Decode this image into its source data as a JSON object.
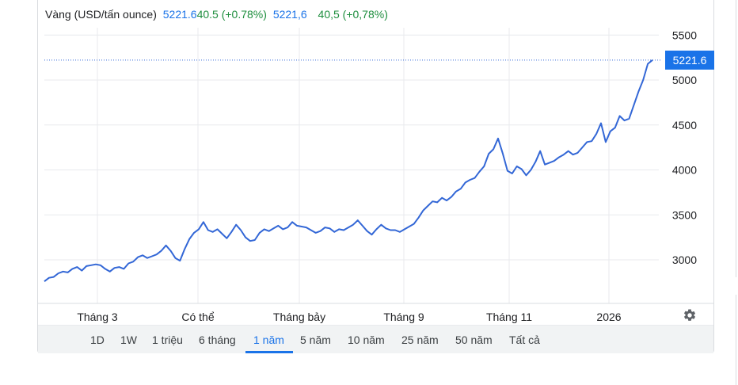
{
  "header": {
    "title": "Vàng (USD/tấn ounce)",
    "price": "5221.6",
    "change": "40.5 (+0.78%)",
    "price_alt": "5221,6",
    "change_alt": "40,5 (+0,78%)"
  },
  "current_label": "5221.6",
  "ranges": [
    "1D",
    "1W",
    "1 triệu",
    "6 tháng",
    "1 năm",
    "5 năm",
    "10 năm",
    "25 năm",
    "50 năm",
    "Tất cả"
  ],
  "active_range": "1 năm",
  "colors": {
    "line": "#3367d6",
    "accent": "#1a73e8",
    "positive": "#1e8e3e",
    "grid": "#e8eaed"
  },
  "icons": {
    "settings": "gear-icon"
  },
  "chart_data": {
    "type": "line",
    "x_tick_labels": [
      "Tháng 3",
      "Có thể",
      "Tháng bảy",
      "Tháng 9",
      "Tháng 11",
      "2026"
    ],
    "y_ticks": [
      3000,
      3500,
      4000,
      4500,
      5000,
      5500
    ],
    "ylim": [
      2600,
      5600
    ],
    "grid": true,
    "reference_line": 5221.6,
    "series": [
      {
        "values": [
          2760,
          2800,
          2810,
          2850,
          2870,
          2860,
          2900,
          2920,
          2880,
          2930,
          2940,
          2950,
          2940,
          2900,
          2870,
          2910,
          2920,
          2900,
          2960,
          2980,
          3030,
          3050,
          3020,
          3040,
          3060,
          3100,
          3160,
          3100,
          3020,
          2990,
          3120,
          3230,
          3300,
          3340,
          3420,
          3330,
          3310,
          3340,
          3290,
          3240,
          3310,
          3390,
          3330,
          3250,
          3210,
          3220,
          3300,
          3340,
          3320,
          3350,
          3380,
          3340,
          3360,
          3420,
          3380,
          3370,
          3360,
          3330,
          3300,
          3320,
          3360,
          3350,
          3310,
          3340,
          3330,
          3360,
          3390,
          3440,
          3380,
          3320,
          3280,
          3340,
          3390,
          3350,
          3330,
          3330,
          3310,
          3340,
          3370,
          3400,
          3470,
          3550,
          3600,
          3650,
          3640,
          3690,
          3660,
          3700,
          3760,
          3790,
          3860,
          3890,
          3910,
          3980,
          4040,
          4180,
          4230,
          4350,
          4180,
          3990,
          3960,
          4040,
          4010,
          3940,
          4000,
          4090,
          4210,
          4060,
          4080,
          4100,
          4140,
          4170,
          4210,
          4170,
          4190,
          4250,
          4310,
          4320,
          4400,
          4520,
          4310,
          4430,
          4470,
          4600,
          4550,
          4570,
          4720,
          4870,
          5000,
          5180,
          5221.6
        ]
      }
    ]
  }
}
